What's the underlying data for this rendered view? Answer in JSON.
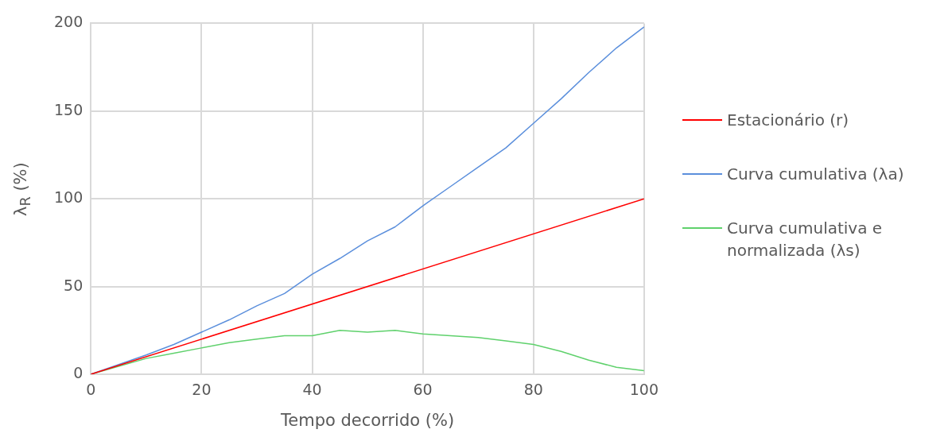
{
  "chart_data": {
    "type": "line",
    "xlabel": "Tempo decorrido (%)",
    "ylabel": "λ$_{R}$ (%)",
    "xlim": [
      0,
      100
    ],
    "xticks": [
      0,
      20,
      40,
      60,
      80,
      100
    ],
    "ylim": [
      0,
      200
    ],
    "yticks": [
      0,
      50,
      100,
      150,
      200
    ],
    "grid": true,
    "legend": "right",
    "marker": "none",
    "line_style": "solid",
    "series": [
      {
        "name": "Estacionário (r)",
        "color": "#ff0000",
        "x": [
          0,
          100
        ],
        "values": [
          0,
          100
        ]
      },
      {
        "name": "Curva cumulativa (λa)",
        "color": "#5b8fdc",
        "x": [
          0,
          10,
          15,
          20,
          25,
          30,
          35,
          40,
          45,
          50,
          55,
          60,
          65,
          70,
          75,
          80,
          85,
          90,
          95,
          100
        ],
        "values": [
          0,
          11,
          17,
          24,
          31,
          39,
          46,
          57,
          66,
          76,
          84,
          96,
          107,
          118,
          129,
          143,
          157,
          172,
          186,
          198
        ]
      },
      {
        "name": "Curva cumulativa e normalizada (λs)",
        "color": "#5fd16c",
        "x": [
          0,
          10,
          15,
          20,
          25,
          30,
          35,
          40,
          45,
          50,
          55,
          60,
          65,
          70,
          75,
          80,
          85,
          90,
          95,
          100
        ],
        "values": [
          0,
          9,
          12,
          15,
          18,
          20,
          22,
          22,
          25,
          24,
          25,
          23,
          22,
          21,
          19,
          17,
          13,
          8,
          4,
          2
        ]
      }
    ]
  }
}
